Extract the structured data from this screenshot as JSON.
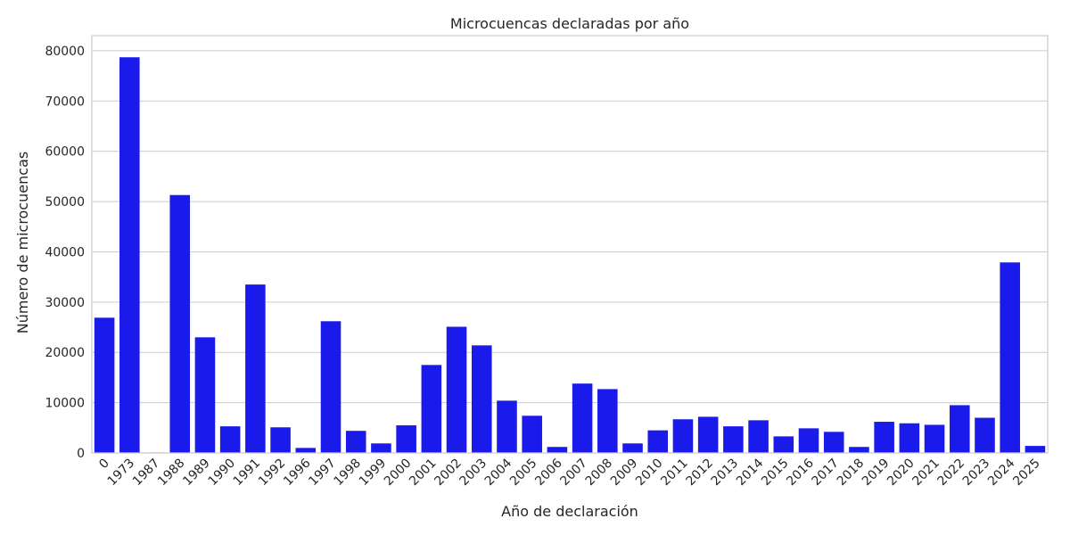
{
  "chart_data": {
    "type": "bar",
    "title": "Microcuencas declaradas por año",
    "xlabel": "Año de declaración",
    "ylabel": "Número de microcuencas",
    "ylim": [
      0,
      83000
    ],
    "yticks": [
      0,
      10000,
      20000,
      30000,
      40000,
      50000,
      60000,
      70000,
      80000
    ],
    "grid": "horizontal",
    "bar_color": "#1a1aeb",
    "categories": [
      "0",
      "1973",
      "1987",
      "1988",
      "1989",
      "1990",
      "1991",
      "1992",
      "1996",
      "1997",
      "1998",
      "1999",
      "2000",
      "2001",
      "2002",
      "2003",
      "2004",
      "2005",
      "2006",
      "2007",
      "2008",
      "2009",
      "2010",
      "2011",
      "2012",
      "2013",
      "2014",
      "2015",
      "2016",
      "2017",
      "2018",
      "2019",
      "2020",
      "2021",
      "2022",
      "2023",
      "2024",
      "2025"
    ],
    "values": [
      26900,
      78700,
      100,
      51300,
      23000,
      5300,
      33500,
      5100,
      1000,
      26200,
      4400,
      1900,
      5500,
      17500,
      25100,
      21400,
      10400,
      7400,
      1200,
      13800,
      12700,
      1900,
      4500,
      6700,
      7200,
      5300,
      6500,
      3300,
      4900,
      4200,
      1200,
      6200,
      5900,
      5600,
      9500,
      7000,
      37900,
      1400
    ]
  }
}
